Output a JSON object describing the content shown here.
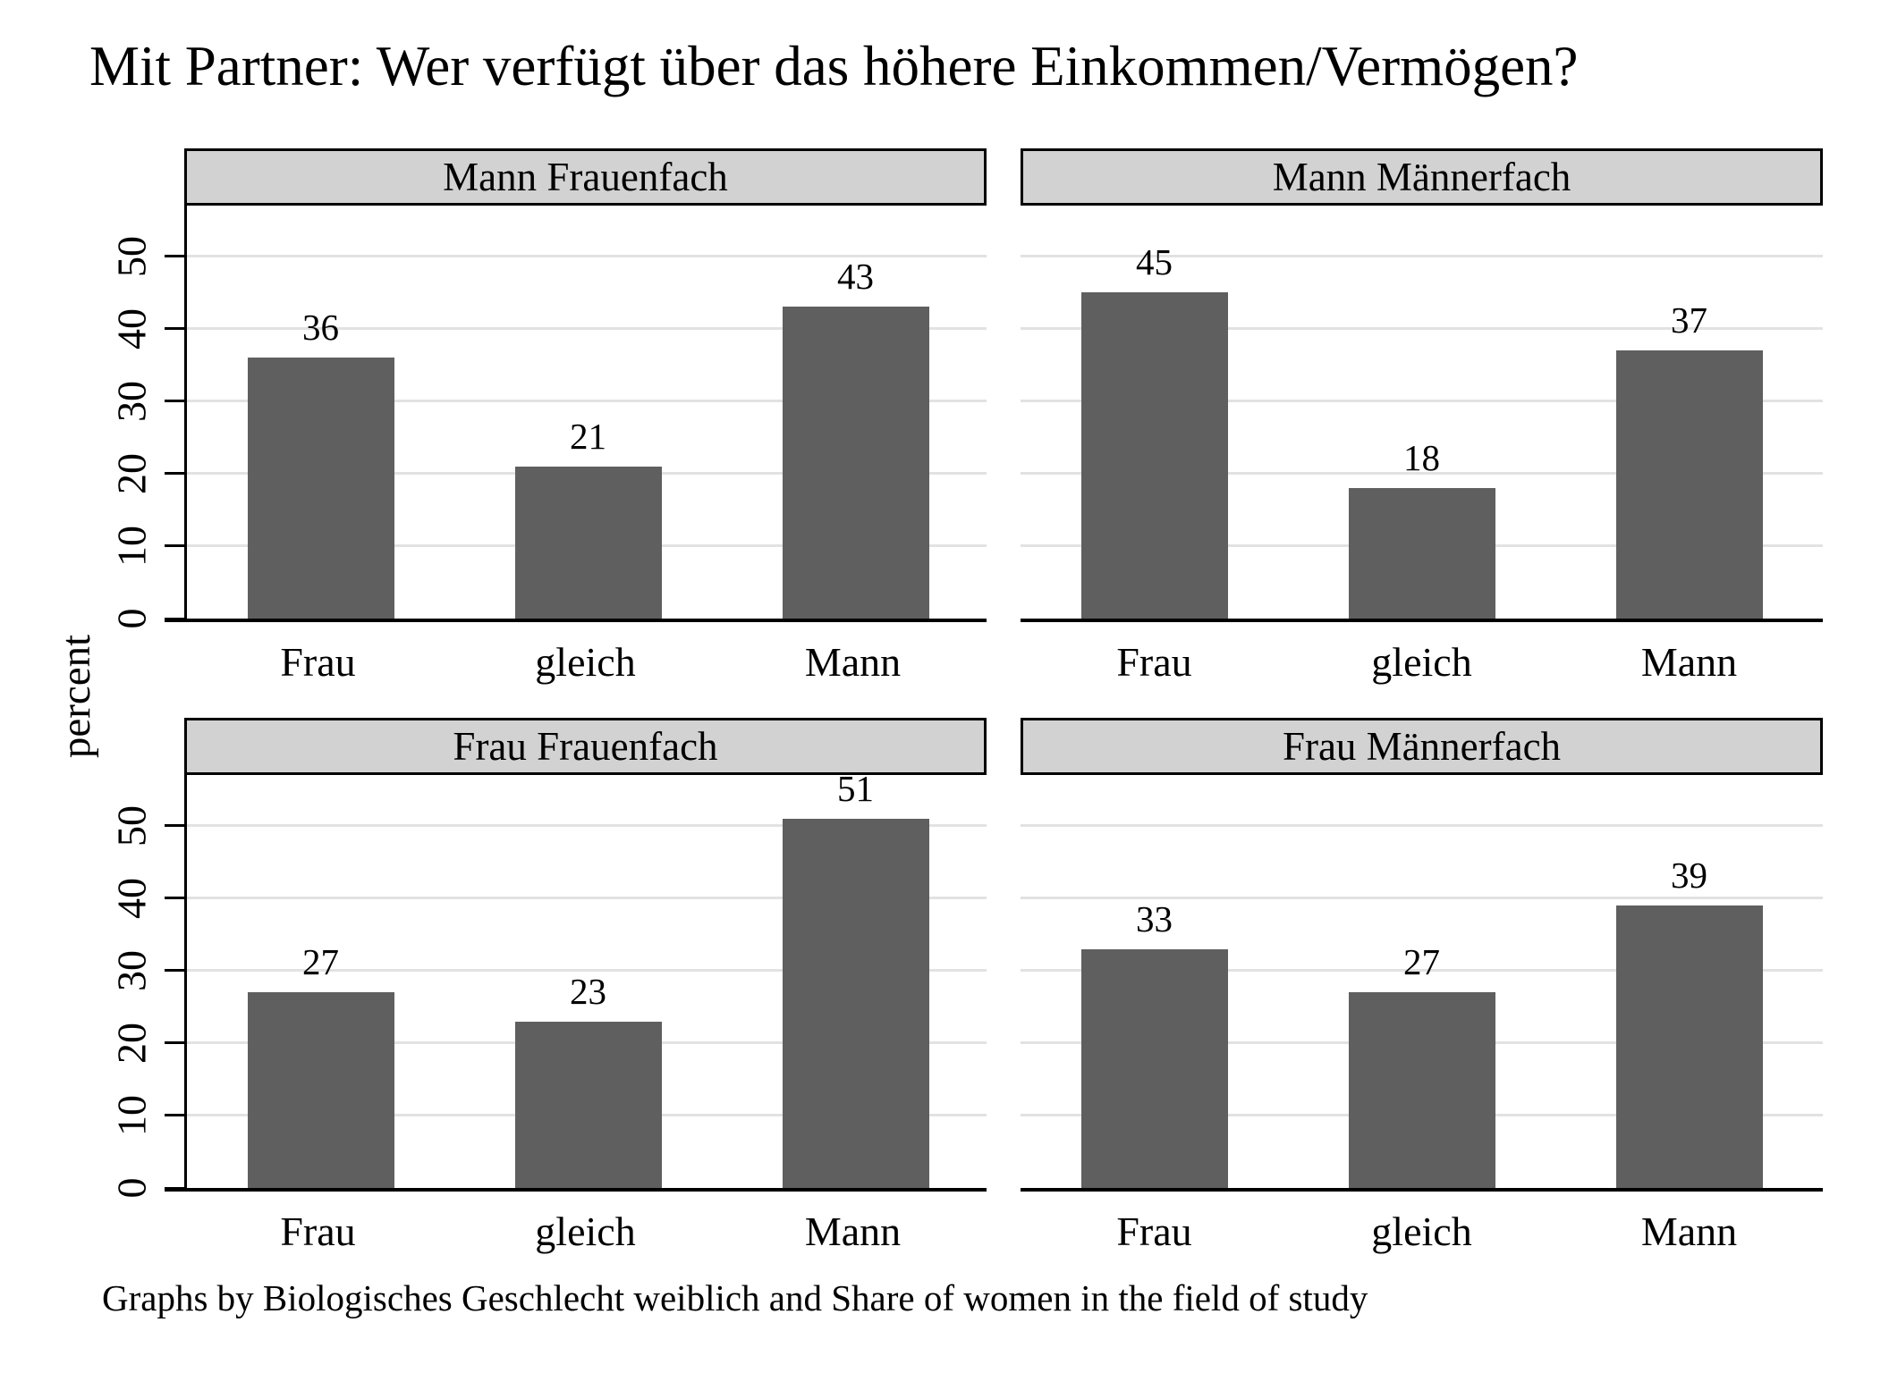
{
  "chart_data": {
    "type": "bar",
    "title": "Mit Partner: Wer verfügt über das höhere Einkommen/Vermögen?",
    "ylabel": "percent",
    "note": "Graphs by Biologisches Geschlecht weiblich and Share of women in the field of study",
    "categories": [
      "Frau",
      "gleich",
      "Mann"
    ],
    "y_ticks": [
      0,
      10,
      20,
      30,
      40,
      50
    ],
    "ylim": [
      0,
      57
    ],
    "grid": true,
    "legend": "none",
    "panels": [
      {
        "title": "Mann Frauenfach",
        "values": [
          36,
          21,
          43
        ]
      },
      {
        "title": "Mann Männerfach",
        "values": [
          45,
          18,
          37
        ]
      },
      {
        "title": "Frau Frauenfach",
        "values": [
          27,
          23,
          51
        ]
      },
      {
        "title": "Frau Männerfach",
        "values": [
          33,
          27,
          39
        ]
      }
    ],
    "colors": {
      "bar": "#5f5f5f",
      "panel_header_bg": "#d2d2d2",
      "panel_border": "#000000",
      "gridline": "#e2e2e2",
      "axis": "#000000",
      "background": "#ffffff"
    }
  }
}
